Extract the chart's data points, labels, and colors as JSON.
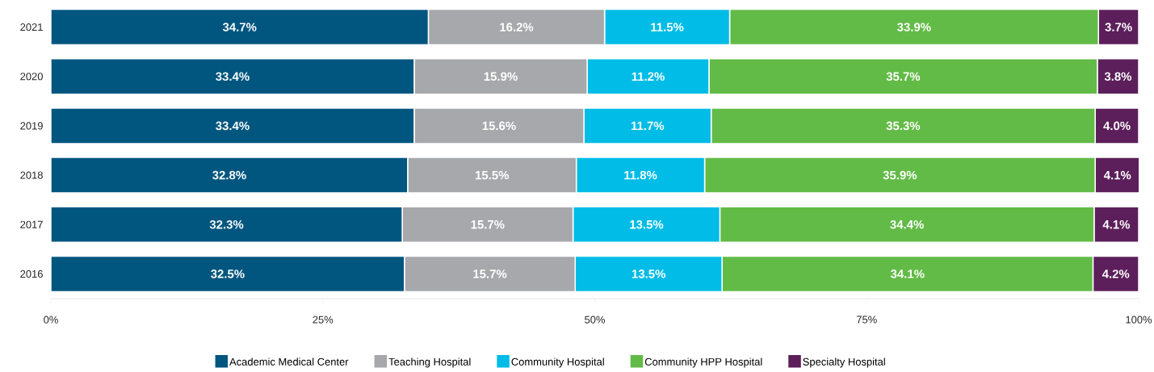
{
  "chart_data": {
    "type": "bar",
    "orientation": "horizontal",
    "stacked": true,
    "legend": "bottom",
    "grid": false,
    "categories": [
      "2021",
      "2020",
      "2019",
      "2018",
      "2017",
      "2016"
    ],
    "xlim": [
      0,
      100
    ],
    "xticks": [
      {
        "value": 0,
        "label": "0%"
      },
      {
        "value": 25,
        "label": "25%"
      },
      {
        "value": 50,
        "label": "50%"
      },
      {
        "value": 75,
        "label": "75%"
      },
      {
        "value": 100,
        "label": "100%"
      }
    ],
    "series": [
      {
        "name": "Academic Medical Center",
        "color": "#00567f",
        "values": [
          34.7,
          33.4,
          33.4,
          32.8,
          32.3,
          32.5
        ],
        "value_labels": [
          "34.7%",
          "33.4%",
          "33.4%",
          "32.8%",
          "32.3%",
          "32.5%"
        ]
      },
      {
        "name": "Teaching Hospital",
        "color": "#a7a8ab",
        "values": [
          16.2,
          15.9,
          15.6,
          15.5,
          15.7,
          15.7
        ],
        "value_labels": [
          "16.2%",
          "15.9%",
          "15.6%",
          "15.5%",
          "15.7%",
          "15.7%"
        ]
      },
      {
        "name": "Community Hospital",
        "color": "#00bce6",
        "values": [
          11.5,
          11.2,
          11.7,
          11.8,
          13.5,
          13.5
        ],
        "value_labels": [
          "11.5%",
          "11.2%",
          "11.7%",
          "11.8%",
          "13.5%",
          "13.5%"
        ]
      },
      {
        "name": "Community HPP Hospital",
        "color": "#62bb46",
        "values": [
          33.9,
          35.7,
          35.3,
          35.9,
          34.4,
          34.1
        ],
        "value_labels": [
          "33.9%",
          "35.7%",
          "35.3%",
          "35.9%",
          "34.4%",
          "34.1%"
        ]
      },
      {
        "name": "Specialty Hospital",
        "color": "#5c1f5b",
        "values": [
          3.7,
          3.8,
          4.0,
          4.1,
          4.1,
          4.2
        ],
        "value_labels": [
          "3.7%",
          "3.8%",
          "4.0%",
          "4.1%",
          "4.1%",
          "4.2%"
        ]
      }
    ]
  }
}
